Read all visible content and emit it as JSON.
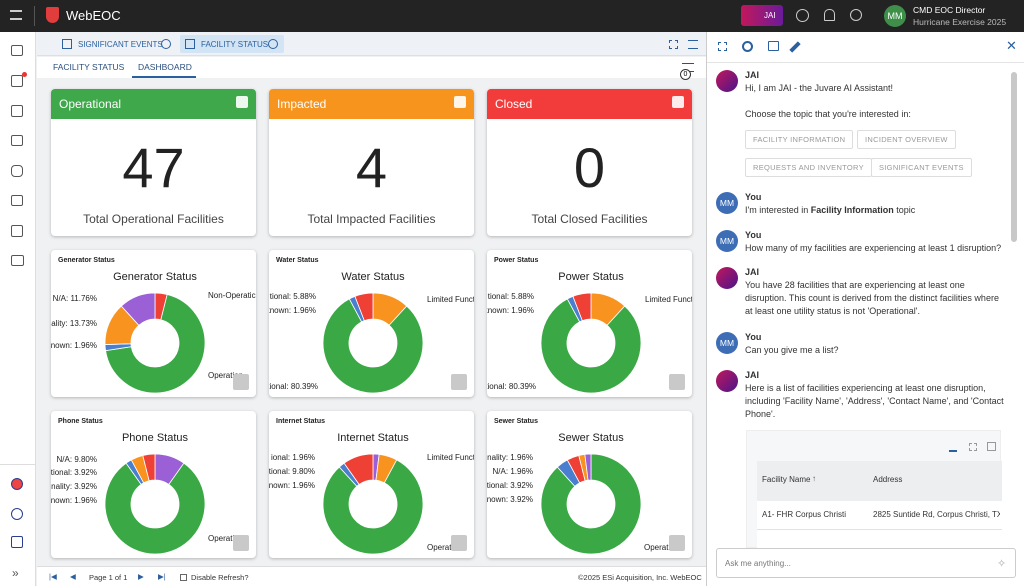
{
  "app": {
    "name": "WebEOC",
    "assistant_badge": "JAI",
    "user_initials": "MM",
    "user_role": "CMD EOC Director",
    "user_incident": "Hurricane Exercise 2025"
  },
  "tabs": [
    "SIGNIFICANT EVENTS",
    "FACILITY STATUS"
  ],
  "subtabs": [
    "FACILITY STATUS",
    "DASHBOARD"
  ],
  "filter_badge": "0",
  "status_cards": [
    {
      "title": "Operational",
      "count": 47,
      "caption": "Total Operational Facilities",
      "color": "#3ea84a"
    },
    {
      "title": "Impacted",
      "count": 4,
      "caption": "Total Impacted Facilities",
      "color": "#f7941d"
    },
    {
      "title": "Closed",
      "count": 0,
      "caption": "Total Closed Facilities",
      "color": "#f23c3c"
    }
  ],
  "chart_data": [
    {
      "type": "pie",
      "panel_title": "Generator Status",
      "title": "Generator Status",
      "values": [
        3.92,
        68.63,
        1.96,
        13.73,
        11.76
      ],
      "value_labels": [
        "Non-Operatic",
        "Operation",
        "known: 1.96%",
        "onality: 13.73%",
        "N/A: 11.76%"
      ],
      "colors": [
        "#ee4035",
        "#3aa845",
        "#4a7fd0",
        "#f7931e",
        "#9b5fd6"
      ]
    },
    {
      "type": "pie",
      "panel_title": "Water Status",
      "title": "Water Status",
      "values": [
        11.77,
        80.39,
        1.96,
        5.88
      ],
      "value_labels": [
        "Limited Funct",
        "tional: 80.39%",
        "known: 1.96%",
        "tional: 5.88%"
      ],
      "colors": [
        "#f7931e",
        "#3aa845",
        "#4a7fd0",
        "#ee4035"
      ]
    },
    {
      "type": "pie",
      "panel_title": "Power Status",
      "title": "Power Status",
      "values": [
        11.77,
        80.39,
        1.96,
        5.88
      ],
      "value_labels": [
        "Limited Funct",
        "tional: 80.39%",
        "known: 1.96%",
        "tional: 5.88%"
      ],
      "colors": [
        "#f7931e",
        "#3aa845",
        "#4a7fd0",
        "#ee4035"
      ]
    },
    {
      "type": "pie",
      "panel_title": "Phone Status",
      "title": "Phone Status",
      "values": [
        9.8,
        80.4,
        1.96,
        3.92,
        3.92
      ],
      "value_labels": [
        "N/A: 9.80%",
        "Operati",
        "known: 1.96%",
        "onality: 3.92%",
        "tional: 3.92%"
      ],
      "colors": [
        "#9b5fd6",
        "#3aa845",
        "#4a7fd0",
        "#f7931e",
        "#ee4035"
      ]
    },
    {
      "type": "pie",
      "panel_title": "Internet Status",
      "title": "Internet Status",
      "values": [
        1.96,
        5.89,
        80.39,
        1.96,
        9.8
      ],
      "value_labels": [
        "ional: 1.96%",
        "Limited Functi",
        "Operati",
        "known: 1.96%",
        "tional: 9.80%"
      ],
      "colors": [
        "#9b5fd6",
        "#f7931e",
        "#3aa845",
        "#4a7fd0",
        "#ee4035"
      ]
    },
    {
      "type": "pie",
      "panel_title": "Sewer Status",
      "title": "Sewer Status",
      "values": [
        88.24,
        3.92,
        3.92,
        1.96,
        1.96
      ],
      "value_labels": [
        "Operati",
        "known: 3.92%",
        "tional: 3.92%",
        "onality: 1.96%",
        "N/A: 1.96%"
      ],
      "colors": [
        "#3aa845",
        "#4a7fd0",
        "#ee4035",
        "#f7931e",
        "#9b5fd6"
      ]
    }
  ],
  "footer": {
    "pagination": "Page 1 of 1",
    "refresh": "Disable Refresh?",
    "copyright": "©2025 ESi Acquisition, Inc. WebEOC"
  },
  "chat": {
    "messages": [
      {
        "sender": "JAI",
        "text": [
          "Hi, I am JAI - the Juvare AI Assistant!"
        ],
        "prompt": "Choose the topic that you're interested in:",
        "topics": [
          "FACILITY INFORMATION",
          "INCIDENT OVERVIEW",
          "REQUESTS AND INVENTORY",
          "SIGNIFICANT EVENTS"
        ]
      },
      {
        "sender": "You",
        "avatar": "MM",
        "text": [
          "I'm interested in ",
          "Facility Information",
          " topic"
        ]
      },
      {
        "sender": "You",
        "avatar": "MM",
        "text": [
          "How many of my facilities are experiencing at least 1 disruption?"
        ]
      },
      {
        "sender": "JAI",
        "text": [
          "You have 28 facilities that are experiencing at least one disruption. This count is derived from the distinct facilities where at least one utility status is not 'Operational'."
        ]
      },
      {
        "sender": "You",
        "avatar": "MM",
        "text": [
          "Can you give me a list?"
        ]
      },
      {
        "sender": "JAI",
        "text": [
          "Here is a list of facilities experiencing at least one disruption, including 'Facility Name', 'Address', 'Contact Name', and 'Contact Phone'."
        ]
      }
    ],
    "table": {
      "headers": [
        "Facility Name",
        "Address"
      ],
      "rows": [
        [
          "A1- FHR Corpus Christi",
          "2825 Suntide Rd, Corpus Christi, TX 7"
        ]
      ]
    },
    "input_placeholder": "Ask me anything..."
  }
}
